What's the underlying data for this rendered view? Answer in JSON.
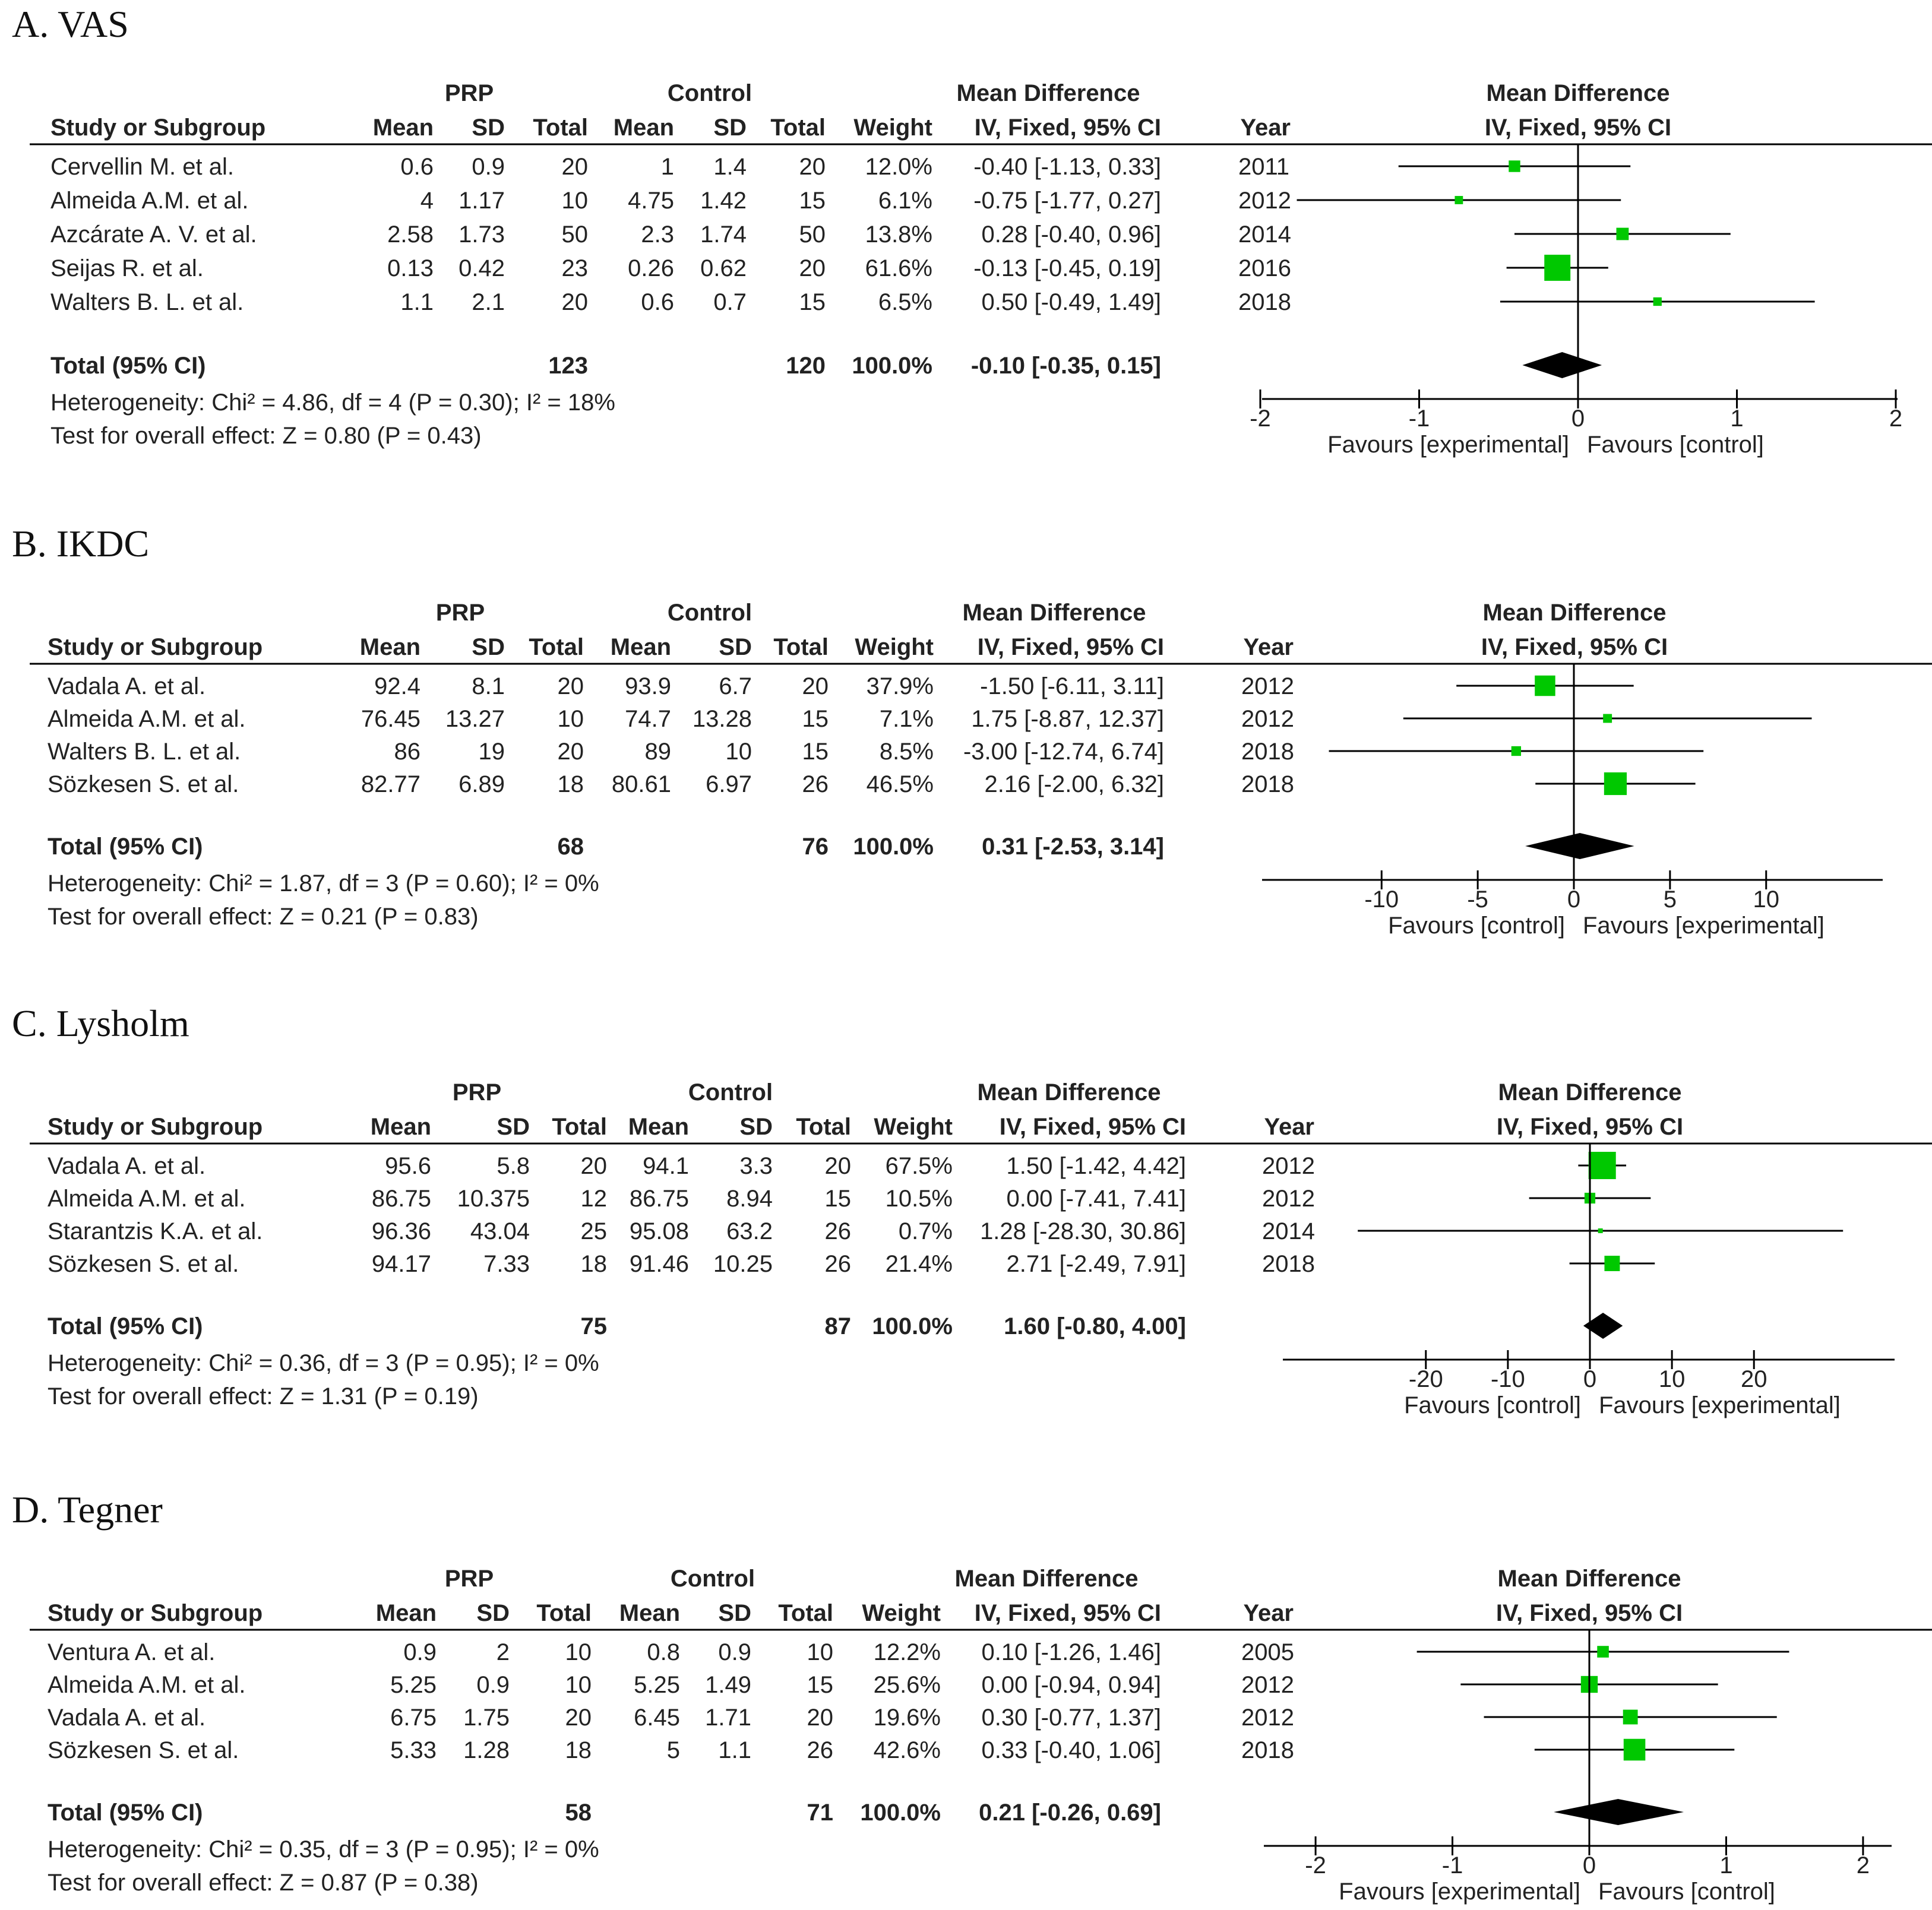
{
  "colors": {
    "marker": "#00c800",
    "diamond": "#000000",
    "line": "#000000",
    "text": "#222222"
  },
  "chart_data": [
    {
      "type": "forest",
      "title": "A. VAS",
      "group_headers": {
        "exp": "PRP",
        "ctrl": "Control",
        "md": "Mean Difference",
        "plot": "Mean Difference"
      },
      "columns": [
        "Study or Subgroup",
        "Mean",
        "SD",
        "Total",
        "Mean",
        "SD",
        "Total",
        "Weight",
        "IV, Fixed, 95% CI",
        "Year"
      ],
      "plot_subheader": "IV, Fixed, 95% CI",
      "studies": [
        {
          "name": "Cervellin M. et al.",
          "exp_mean": "0.6",
          "exp_sd": "0.9",
          "exp_total": "20",
          "ctrl_mean": "1",
          "ctrl_sd": "1.4",
          "ctrl_total": "20",
          "weight": "12.0%",
          "ci_text": "-0.40 [-1.13, 0.33]",
          "year": "2011",
          "md": -0.4,
          "lo": -1.13,
          "hi": 0.33,
          "w": 12.0
        },
        {
          "name": "Almeida A.M. et al.",
          "exp_mean": "4",
          "exp_sd": "1.17",
          "exp_total": "10",
          "ctrl_mean": "4.75",
          "ctrl_sd": "1.42",
          "ctrl_total": "15",
          "weight": "6.1%",
          "ci_text": "-0.75 [-1.77, 0.27]",
          "year": "2012",
          "md": -0.75,
          "lo": -1.77,
          "hi": 0.27,
          "w": 6.1
        },
        {
          "name": "Azcárate A. V. et al.",
          "exp_mean": "2.58",
          "exp_sd": "1.73",
          "exp_total": "50",
          "ctrl_mean": "2.3",
          "ctrl_sd": "1.74",
          "ctrl_total": "50",
          "weight": "13.8%",
          "ci_text": "0.28 [-0.40, 0.96]",
          "year": "2014",
          "md": 0.28,
          "lo": -0.4,
          "hi": 0.96,
          "w": 13.8
        },
        {
          "name": "Seijas R. et al.",
          "exp_mean": "0.13",
          "exp_sd": "0.42",
          "exp_total": "23",
          "ctrl_mean": "0.26",
          "ctrl_sd": "0.62",
          "ctrl_total": "20",
          "weight": "61.6%",
          "ci_text": "-0.13 [-0.45, 0.19]",
          "year": "2016",
          "md": -0.13,
          "lo": -0.45,
          "hi": 0.19,
          "w": 61.6
        },
        {
          "name": "Walters B. L. et al.",
          "exp_mean": "1.1",
          "exp_sd": "2.1",
          "exp_total": "20",
          "ctrl_mean": "0.6",
          "ctrl_sd": "0.7",
          "ctrl_total": "15",
          "weight": "6.5%",
          "ci_text": "0.50 [-0.49, 1.49]",
          "year": "2018",
          "md": 0.5,
          "lo": -0.49,
          "hi": 1.49,
          "w": 6.5
        }
      ],
      "total": {
        "label": "Total (95% CI)",
        "exp_total": "123",
        "ctrl_total": "120",
        "weight": "100.0%",
        "ci_text": "-0.10 [-0.35, 0.15]",
        "md": -0.1,
        "lo": -0.35,
        "hi": 0.15
      },
      "heterogeneity": "Heterogeneity: Chi² = 4.86, df = 4 (P = 0.30); I² = 18%",
      "overall": "Test for overall effect: Z = 0.80 (P = 0.43)",
      "axis": {
        "min": -2,
        "max": 2,
        "ticks": [
          -2,
          -1,
          0,
          1,
          2
        ]
      },
      "favours": {
        "left": "Favours [experimental]",
        "right": "Favours [control]"
      }
    },
    {
      "type": "forest",
      "title": "B. IKDC",
      "group_headers": {
        "exp": "PRP",
        "ctrl": "Control",
        "md": "Mean Difference",
        "plot": "Mean Difference"
      },
      "columns": [
        "Study or Subgroup",
        "Mean",
        "SD",
        "Total",
        "Mean",
        "SD",
        "Total",
        "Weight",
        "IV, Fixed, 95% CI",
        "Year"
      ],
      "plot_subheader": "IV, Fixed, 95% CI",
      "studies": [
        {
          "name": "Vadala A. et al.",
          "exp_mean": "92.4",
          "exp_sd": "8.1",
          "exp_total": "20",
          "ctrl_mean": "93.9",
          "ctrl_sd": "6.7",
          "ctrl_total": "20",
          "weight": "37.9%",
          "ci_text": "-1.50 [-6.11, 3.11]",
          "year": "2012",
          "md": -1.5,
          "lo": -6.11,
          "hi": 3.11,
          "w": 37.9
        },
        {
          "name": "Almeida A.M. et al.",
          "exp_mean": "76.45",
          "exp_sd": "13.27",
          "exp_total": "10",
          "ctrl_mean": "74.7",
          "ctrl_sd": "13.28",
          "ctrl_total": "15",
          "weight": "7.1%",
          "ci_text": "1.75 [-8.87, 12.37]",
          "year": "2012",
          "md": 1.75,
          "lo": -8.87,
          "hi": 12.37,
          "w": 7.1
        },
        {
          "name": "Walters B. L. et al.",
          "exp_mean": "86",
          "exp_sd": "19",
          "exp_total": "20",
          "ctrl_mean": "89",
          "ctrl_sd": "10",
          "ctrl_total": "15",
          "weight": "8.5%",
          "ci_text": "-3.00 [-12.74, 6.74]",
          "year": "2018",
          "md": -3.0,
          "lo": -12.74,
          "hi": 6.74,
          "w": 8.5
        },
        {
          "name": "Sözkesen S. et al.",
          "exp_mean": "82.77",
          "exp_sd": "6.89",
          "exp_total": "18",
          "ctrl_mean": "80.61",
          "ctrl_sd": "6.97",
          "ctrl_total": "26",
          "weight": "46.5%",
          "ci_text": "2.16 [-2.00, 6.32]",
          "year": "2018",
          "md": 2.16,
          "lo": -2.0,
          "hi": 6.32,
          "w": 46.5
        }
      ],
      "total": {
        "label": "Total (95% CI)",
        "exp_total": "68",
        "ctrl_total": "76",
        "weight": "100.0%",
        "ci_text": "0.31 [-2.53, 3.14]",
        "md": 0.31,
        "lo": -2.53,
        "hi": 3.14
      },
      "heterogeneity": "Heterogeneity: Chi² = 1.87, df = 3 (P = 0.60); I² = 0%",
      "overall": "Test for overall effect: Z = 0.21 (P = 0.83)",
      "axis": {
        "min": -16,
        "max": 16,
        "ticks": [
          -10,
          -5,
          0,
          5,
          10
        ]
      },
      "favours": {
        "left": "Favours [control]",
        "right": "Favours [experimental]"
      }
    },
    {
      "type": "forest",
      "title": "C. Lysholm",
      "group_headers": {
        "exp": "PRP",
        "ctrl": "Control",
        "md": "Mean Difference",
        "plot": "Mean Difference"
      },
      "columns": [
        "Study or Subgroup",
        "Mean",
        "SD",
        "Total",
        "Mean",
        "SD",
        "Total",
        "Weight",
        "IV, Fixed, 95% CI",
        "Year"
      ],
      "plot_subheader": "IV, Fixed, 95% CI",
      "studies": [
        {
          "name": "Vadala A. et al.",
          "exp_mean": "95.6",
          "exp_sd": "5.8",
          "exp_total": "20",
          "ctrl_mean": "94.1",
          "ctrl_sd": "3.3",
          "ctrl_total": "20",
          "weight": "67.5%",
          "ci_text": "1.50 [-1.42, 4.42]",
          "year": "2012",
          "md": 1.5,
          "lo": -1.42,
          "hi": 4.42,
          "w": 67.5
        },
        {
          "name": "Almeida A.M. et al.",
          "exp_mean": "86.75",
          "exp_sd": "10.375",
          "exp_total": "12",
          "ctrl_mean": "86.75",
          "ctrl_sd": "8.94",
          "ctrl_total": "15",
          "weight": "10.5%",
          "ci_text": "0.00 [-7.41, 7.41]",
          "year": "2012",
          "md": 0.0,
          "lo": -7.41,
          "hi": 7.41,
          "w": 10.5
        },
        {
          "name": "Starantzis K.A. et al.",
          "exp_mean": "96.36",
          "exp_sd": "43.04",
          "exp_total": "25",
          "ctrl_mean": "95.08",
          "ctrl_sd": "63.2",
          "ctrl_total": "26",
          "weight": "0.7%",
          "ci_text": "1.28 [-28.30, 30.86]",
          "year": "2014",
          "md": 1.28,
          "lo": -28.3,
          "hi": 30.86,
          "w": 0.7
        },
        {
          "name": "Sözkesen S. et al.",
          "exp_mean": "94.17",
          "exp_sd": "7.33",
          "exp_total": "18",
          "ctrl_mean": "91.46",
          "ctrl_sd": "10.25",
          "ctrl_total": "26",
          "weight": "21.4%",
          "ci_text": "2.71 [-2.49, 7.91]",
          "year": "2018",
          "md": 2.71,
          "lo": -2.49,
          "hi": 7.91,
          "w": 21.4
        }
      ],
      "total": {
        "label": "Total (95% CI)",
        "exp_total": "75",
        "ctrl_total": "87",
        "weight": "100.0%",
        "ci_text": "1.60 [-0.80, 4.00]",
        "md": 1.6,
        "lo": -0.8,
        "hi": 4.0
      },
      "heterogeneity": "Heterogeneity: Chi² = 0.36, df = 3 (P = 0.95); I² = 0%",
      "overall": "Test for overall effect: Z = 1.31 (P = 0.19)",
      "axis": {
        "min": -37,
        "max": 37,
        "ticks": [
          -20,
          -10,
          0,
          10,
          20
        ]
      },
      "favours": {
        "left": "Favours [control]",
        "right": "Favours [experimental]"
      }
    },
    {
      "type": "forest",
      "title": "D. Tegner",
      "group_headers": {
        "exp": "PRP",
        "ctrl": "Control",
        "md": "Mean Difference",
        "plot": "Mean Difference"
      },
      "columns": [
        "Study or Subgroup",
        "Mean",
        "SD",
        "Total",
        "Mean",
        "SD",
        "Total",
        "Weight",
        "IV, Fixed, 95% CI",
        "Year"
      ],
      "plot_subheader": "IV, Fixed, 95% CI",
      "studies": [
        {
          "name": "Ventura A. et al.",
          "exp_mean": "0.9",
          "exp_sd": "2",
          "exp_total": "10",
          "ctrl_mean": "0.8",
          "ctrl_sd": "0.9",
          "ctrl_total": "10",
          "weight": "12.2%",
          "ci_text": "0.10 [-1.26, 1.46]",
          "year": "2005",
          "md": 0.1,
          "lo": -1.26,
          "hi": 1.46,
          "w": 12.2
        },
        {
          "name": "Almeida A.M. et al.",
          "exp_mean": "5.25",
          "exp_sd": "0.9",
          "exp_total": "10",
          "ctrl_mean": "5.25",
          "ctrl_sd": "1.49",
          "ctrl_total": "15",
          "weight": "25.6%",
          "ci_text": "0.00 [-0.94, 0.94]",
          "year": "2012",
          "md": 0.0,
          "lo": -0.94,
          "hi": 0.94,
          "w": 25.6
        },
        {
          "name": "Vadala A. et al.",
          "exp_mean": "6.75",
          "exp_sd": "1.75",
          "exp_total": "20",
          "ctrl_mean": "6.45",
          "ctrl_sd": "1.71",
          "ctrl_total": "20",
          "weight": "19.6%",
          "ci_text": "0.30 [-0.77, 1.37]",
          "year": "2012",
          "md": 0.3,
          "lo": -0.77,
          "hi": 1.37,
          "w": 19.6
        },
        {
          "name": "Sözkesen S. et al.",
          "exp_mean": "5.33",
          "exp_sd": "1.28",
          "exp_total": "18",
          "ctrl_mean": "5",
          "ctrl_sd": "1.1",
          "ctrl_total": "26",
          "weight": "42.6%",
          "ci_text": "0.33 [-0.40, 1.06]",
          "year": "2018",
          "md": 0.33,
          "lo": -0.4,
          "hi": 1.06,
          "w": 42.6
        }
      ],
      "total": {
        "label": "Total (95% CI)",
        "exp_total": "58",
        "ctrl_total": "71",
        "weight": "100.0%",
        "ci_text": "0.21 [-0.26, 0.69]",
        "md": 0.21,
        "lo": -0.26,
        "hi": 0.69
      },
      "heterogeneity": "Heterogeneity: Chi² = 0.35, df = 3 (P = 0.95); I² = 0%",
      "overall": "Test for overall effect: Z = 0.87 (P = 0.38)",
      "axis": {
        "min": -2.2,
        "max": 2.2,
        "ticks": [
          -2,
          -1,
          0,
          1,
          2
        ]
      },
      "favours": {
        "left": "Favours [experimental]",
        "right": "Favours [control]"
      }
    }
  ]
}
